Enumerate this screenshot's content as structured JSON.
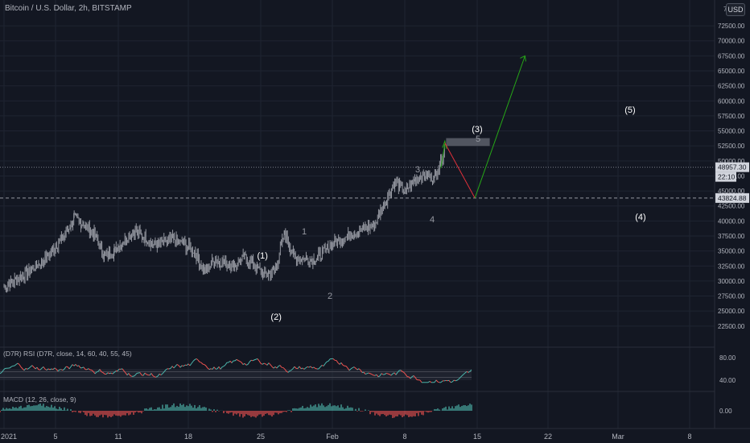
{
  "header": {
    "title": "Bitcoin / U.S. Dollar, 2h, BITSTAMP",
    "currency_button": "USD",
    "top_price_cut": "7"
  },
  "price_axis": {
    "ticks": [
      "72500.00",
      "70000.00",
      "67500.00",
      "65000.00",
      "62500.00",
      "60000.00",
      "57500.00",
      "55000.00",
      "52500.00",
      "50000.00",
      "47500.00",
      "45000.00",
      "42500.00",
      "40000.00",
      "37500.00",
      "35000.00",
      "32500.00",
      "30000.00",
      "27500.00",
      "25000.00",
      "22500.00"
    ],
    "tick_values": [
      72500,
      70000,
      67500,
      65000,
      62500,
      60000,
      57500,
      55000,
      52500,
      50000,
      47500,
      45000,
      42500,
      40000,
      37500,
      35000,
      32500,
      30000,
      27500,
      25000,
      22500
    ],
    "current_price_label": "48957.30",
    "countdown_label": "22:10",
    "target_price_label": "43824.88"
  },
  "rsi_panel": {
    "label": "(D7R) RSI (D7R, close, 14, 60, 40, 55, 45)",
    "ticks": [
      "80.00",
      "40.00"
    ]
  },
  "macd_panel": {
    "label": "MACD (12, 26, close, 9)",
    "ticks": [
      "0.00"
    ]
  },
  "time_axis": {
    "labels": [
      "2021",
      "5",
      "11",
      "18",
      "25",
      "Feb",
      "8",
      "15",
      "22",
      "Mar",
      "8"
    ]
  },
  "wave_labels": [
    "(1)",
    "(2)",
    "(3)",
    "(4)",
    "(5)",
    "1",
    "2",
    "3",
    "4",
    "5"
  ],
  "colors": {
    "background": "#131722",
    "candles": "#9598a1",
    "up_arrow": "#26a617",
    "down_arrow": "#e0303a",
    "rsi_line_up": "#4db6ac",
    "rsi_line_down": "#ef5350",
    "macd_pos": "#4db6ac",
    "macd_neg": "#ef5350",
    "resistance_box": "#5d606b"
  },
  "chart_data": {
    "type": "line",
    "title": "Bitcoin / U.S. Dollar, 2h, BITSTAMP",
    "ylim": [
      21000,
      76000
    ],
    "price_path": {
      "x": [
        "2021-01-01",
        "2021-01-03",
        "2021-01-05",
        "2021-01-07",
        "2021-01-08",
        "2021-01-10",
        "2021-01-11",
        "2021-01-12",
        "2021-01-14",
        "2021-01-16",
        "2021-01-18",
        "2021-01-20",
        "2021-01-21",
        "2021-01-22",
        "2021-01-24",
        "2021-01-25",
        "2021-01-27",
        "2021-01-28",
        "2021-01-29",
        "2021-01-30",
        "2021-02-01",
        "2021-02-03",
        "2021-02-05",
        "2021-02-07",
        "2021-02-08",
        "2021-02-09",
        "2021-02-10",
        "2021-02-11",
        "2021-02-12",
        "2021-02-13",
        "2021-02-14"
      ],
      "y": [
        29000,
        31000,
        33500,
        37500,
        40500,
        38000,
        34000,
        35000,
        38500,
        36000,
        37000,
        35000,
        31500,
        33500,
        32500,
        34000,
        31000,
        31500,
        38000,
        34000,
        33500,
        36500,
        38000,
        39500,
        43000,
        46500,
        44800,
        47000,
        47500,
        47200,
        52000
      ]
    },
    "projection": {
      "x": [
        "2021-02-14",
        "2021-02-17",
        "2021-02-22"
      ],
      "y": [
        53000,
        43824.88,
        67500
      ]
    },
    "resistance_zone": {
      "x": [
        "2021-02-13",
        "2021-02-18"
      ],
      "y": [
        52500,
        53800
      ]
    },
    "horizontal_lines": [
      48957.3,
      43824.88
    ],
    "rsi_ticks": [
      80,
      40
    ],
    "macd_ticks": [
      0
    ]
  }
}
